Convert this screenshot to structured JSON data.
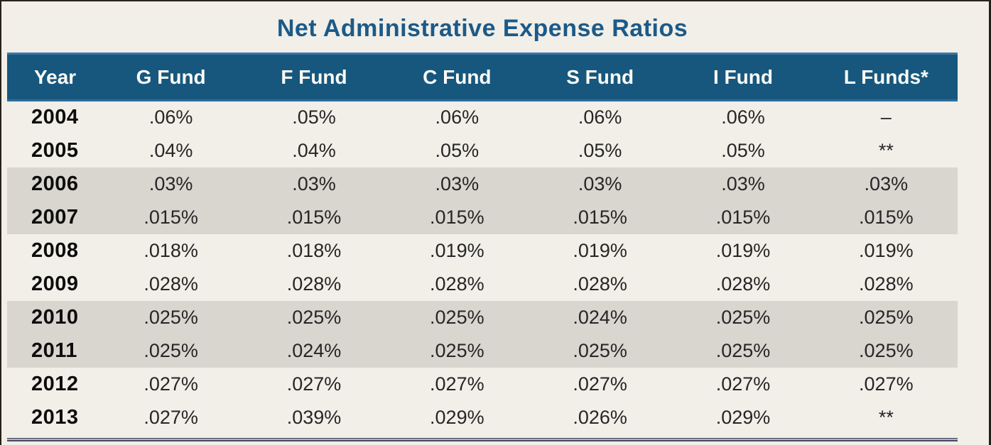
{
  "title": "Net Administrative Expense Ratios",
  "chart_data": {
    "type": "table",
    "title": "Net Administrative Expense Ratios",
    "columns": [
      "Year",
      "G Fund",
      "F Fund",
      "C Fund",
      "S Fund",
      "I Fund",
      "L Funds*"
    ],
    "rows": [
      {
        "year": "2004",
        "values": [
          ".06%",
          ".05%",
          ".06%",
          ".06%",
          ".06%",
          "–"
        ],
        "shaded": false
      },
      {
        "year": "2005",
        "values": [
          ".04%",
          ".04%",
          ".05%",
          ".05%",
          ".05%",
          "**"
        ],
        "shaded": false
      },
      {
        "year": "2006",
        "values": [
          ".03%",
          ".03%",
          ".03%",
          ".03%",
          ".03%",
          ".03%"
        ],
        "shaded": true
      },
      {
        "year": "2007",
        "values": [
          ".015%",
          ".015%",
          ".015%",
          ".015%",
          ".015%",
          ".015%"
        ],
        "shaded": true
      },
      {
        "year": "2008",
        "values": [
          ".018%",
          ".018%",
          ".019%",
          ".019%",
          ".019%",
          ".019%"
        ],
        "shaded": false
      },
      {
        "year": "2009",
        "values": [
          ".028%",
          ".028%",
          ".028%",
          ".028%",
          ".028%",
          ".028%"
        ],
        "shaded": false
      },
      {
        "year": "2010",
        "values": [
          ".025%",
          ".025%",
          ".025%",
          ".024%",
          ".025%",
          ".025%"
        ],
        "shaded": true
      },
      {
        "year": "2011",
        "values": [
          ".025%",
          ".024%",
          ".025%",
          ".025%",
          ".025%",
          ".025%"
        ],
        "shaded": true
      },
      {
        "year": "2012",
        "values": [
          ".027%",
          ".027%",
          ".027%",
          ".027%",
          ".027%",
          ".027%"
        ],
        "shaded": false
      },
      {
        "year": "2013",
        "values": [
          ".027%",
          ".039%",
          ".029%",
          ".026%",
          ".029%",
          "**"
        ],
        "shaded": false
      }
    ],
    "symbols": {
      "no_data_dash": "–",
      "footnote_marker": "**",
      "header_footnote_marker": "*"
    },
    "layout_hints": {
      "shaded_row_pairs": [
        "2006-2007",
        "2010-2011"
      ],
      "year_column_align": "left",
      "value_columns_align": "center"
    }
  },
  "colors": {
    "page-bg": "#f1efe8",
    "title-color": "#1c5a88",
    "header-bg": "#17577d",
    "header-text": "#fafaf7",
    "shaded-row": "#d9d5cf",
    "value-text": "#262626",
    "year-text": "#0d0d0d"
  }
}
